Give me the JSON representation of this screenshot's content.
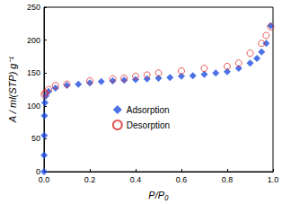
{
  "chart_data": {
    "type": "scatter",
    "x_label": "P/P₀",
    "y_label": "A / ml(STP) g⁻¹",
    "xlim": [
      0,
      1
    ],
    "xticks": [
      {
        "value": 0,
        "label": "0.0"
      },
      0.2,
      0.4,
      0.6,
      0.8,
      {
        "value": 1,
        "label": "1.0"
      }
    ],
    "ylim": [
      0,
      250
    ],
    "yticks": [
      0,
      50,
      100,
      150,
      200,
      250
    ],
    "grid": false,
    "legend": "center",
    "series": [
      {
        "name": "Adsorption",
        "color": "#1f4fe0",
        "marker": "diamond",
        "x": [
          0.0002,
          0.0005,
          0.001,
          0.002,
          0.004,
          0.008,
          0.02,
          0.05,
          0.1,
          0.15,
          0.2,
          0.25,
          0.3,
          0.35,
          0.4,
          0.45,
          0.5,
          0.55,
          0.6,
          0.65,
          0.7,
          0.75,
          0.8,
          0.85,
          0.9,
          0.93,
          0.95,
          0.97,
          0.99
        ],
        "values": [
          0,
          25,
          55,
          85,
          105,
          115,
          122,
          127,
          131,
          133,
          135,
          137,
          138,
          139,
          140,
          141,
          142,
          143,
          145,
          146,
          148,
          150,
          152,
          157,
          165,
          172,
          182,
          195,
          222
        ]
      },
      {
        "name": "Desorption",
        "color": "#e03030",
        "marker": "circle-open",
        "x": [
          0.99,
          0.97,
          0.95,
          0.9,
          0.85,
          0.8,
          0.7,
          0.6,
          0.5,
          0.45,
          0.4,
          0.35,
          0.3,
          0.2,
          0.1,
          0.05,
          0.02,
          0.005,
          0.001
        ],
        "values": [
          220,
          207,
          195,
          180,
          165,
          160,
          157,
          153,
          150,
          147,
          145,
          142,
          141,
          138,
          133,
          131,
          125,
          120,
          117
        ]
      }
    ]
  }
}
